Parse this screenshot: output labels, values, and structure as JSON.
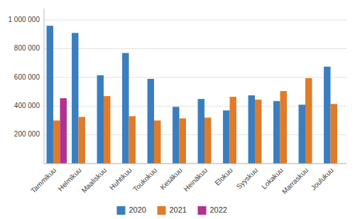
{
  "chart_data": {
    "type": "bar",
    "categories": [
      "Tammikuu",
      "Helmikuu",
      "Maaliskuu",
      "Huhtikuu",
      "Toukokuu",
      "Kesäkuu",
      "Heinäkuu",
      "Elokuu",
      "Syyskuu",
      "Lokakuu",
      "Marraskuu",
      "Joulukuu"
    ],
    "series": [
      {
        "name": "2020",
        "color": "#3a7ebf",
        "values": [
          960000,
          910000,
          615000,
          770000,
          590000,
          395000,
          450000,
          370000,
          475000,
          435000,
          410000,
          675000
        ]
      },
      {
        "name": "2021",
        "color": "#e07b29",
        "values": [
          300000,
          325000,
          470000,
          330000,
          300000,
          315000,
          320000,
          465000,
          445000,
          505000,
          595000,
          415000
        ]
      },
      {
        "name": "2022",
        "color": "#b0328e",
        "values": [
          455000,
          0,
          0,
          0,
          0,
          0,
          0,
          0,
          0,
          0,
          0,
          0
        ]
      }
    ],
    "ylim": [
      0,
      1080000
    ],
    "yticks": [
      {
        "value": 200000,
        "label": "200 000"
      },
      {
        "value": 400000,
        "label": "400 000"
      },
      {
        "value": 600000,
        "label": "600 000"
      },
      {
        "value": 800000,
        "label": "800 000"
      },
      {
        "value": 1000000,
        "label": "1 000 000"
      }
    ],
    "grid": true,
    "legend": "bottom"
  }
}
